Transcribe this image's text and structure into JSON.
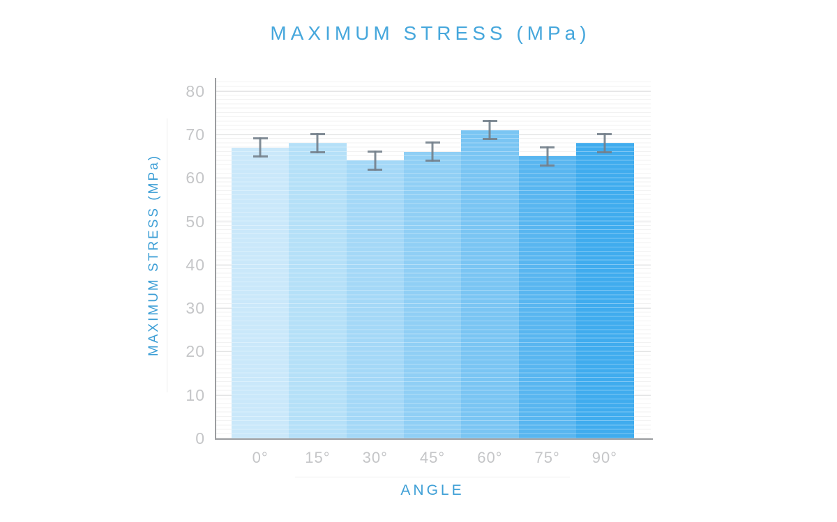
{
  "chart_data": {
    "type": "bar",
    "title": "MAXIMUM STRESS (MPa)",
    "xlabel": "ANGLE",
    "ylabel": "MAXIMUM STRESS (MPa)",
    "categories": [
      "0°",
      "15°",
      "30°",
      "45°",
      "60°",
      "75°",
      "90°"
    ],
    "values": [
      67,
      68,
      64,
      66,
      71,
      65,
      68
    ],
    "errors": [
      2,
      2,
      2,
      2,
      2,
      2,
      2
    ],
    "yticks": [
      0,
      10,
      20,
      30,
      40,
      50,
      60,
      70,
      80
    ],
    "ylim": [
      0,
      83
    ],
    "grid": "minor horizontal lines every 1 unit, major lines every 10 units",
    "legend_position": "none",
    "bar_colors": [
      "#CAE8FA",
      "#B5E0F8",
      "#A4D8F7",
      "#90CFF5",
      "#7AC5F3",
      "#59B6F0",
      "#40ACEE"
    ],
    "colors": {
      "title_text": "#46A7DC",
      "axis_label_text": "#3E9FD6",
      "tick_label_text": "#C5C6C8",
      "axis_line": "#9B9DA0",
      "grid_minor": "#F2F2F2",
      "grid_major": "#E3E4E5",
      "error_bar": "#73808B",
      "divider": "#EDEDED",
      "background": "#FFFFFF"
    }
  }
}
